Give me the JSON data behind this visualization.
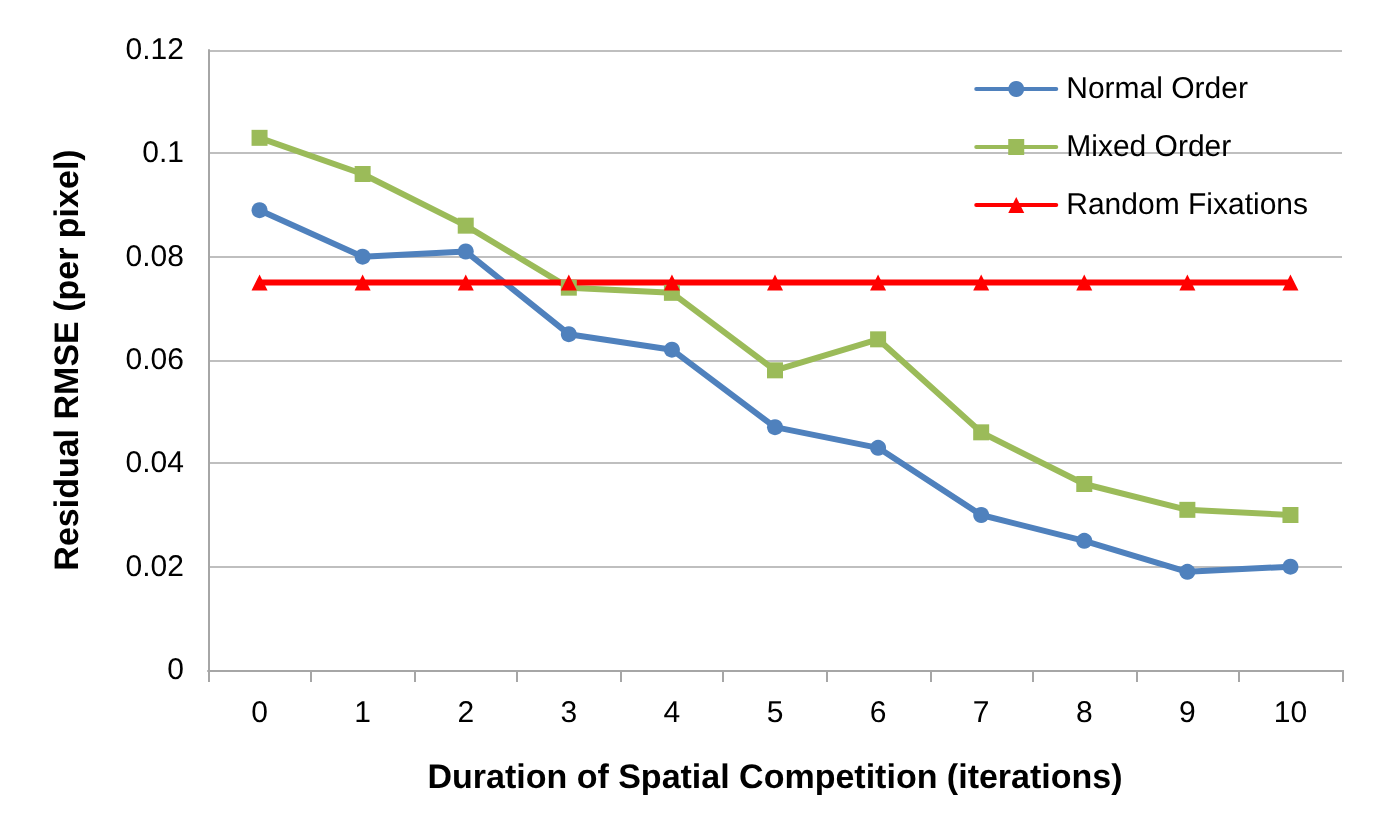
{
  "chart_data": {
    "type": "line",
    "xlabel": "Duration of Spatial Competition (iterations)",
    "ylabel": "Residual RMSE (per pixel)",
    "categories": [
      "0",
      "1",
      "2",
      "3",
      "4",
      "5",
      "6",
      "7",
      "8",
      "9",
      "10"
    ],
    "series": [
      {
        "name": "Normal Order",
        "color": "#4f81bd",
        "marker": "circle",
        "values": [
          0.089,
          0.08,
          0.081,
          0.065,
          0.062,
          0.047,
          0.043,
          0.03,
          0.025,
          0.019,
          0.02
        ]
      },
      {
        "name": "Mixed Order",
        "color": "#9bbb59",
        "marker": "square",
        "values": [
          0.103,
          0.096,
          0.086,
          0.074,
          0.073,
          0.058,
          0.064,
          0.046,
          0.036,
          0.031,
          0.03
        ]
      },
      {
        "name": "Random Fixations",
        "color": "#ff0000",
        "marker": "triangle",
        "values": [
          0.075,
          0.075,
          0.075,
          0.075,
          0.075,
          0.075,
          0.075,
          0.075,
          0.075,
          0.075,
          0.075
        ]
      }
    ],
    "ylim": [
      0,
      0.12
    ],
    "yticks": [
      0,
      0.02,
      0.04,
      0.06,
      0.08,
      0.1,
      0.12
    ],
    "grid": "y",
    "legend": "top right",
    "line_style": "solid"
  }
}
